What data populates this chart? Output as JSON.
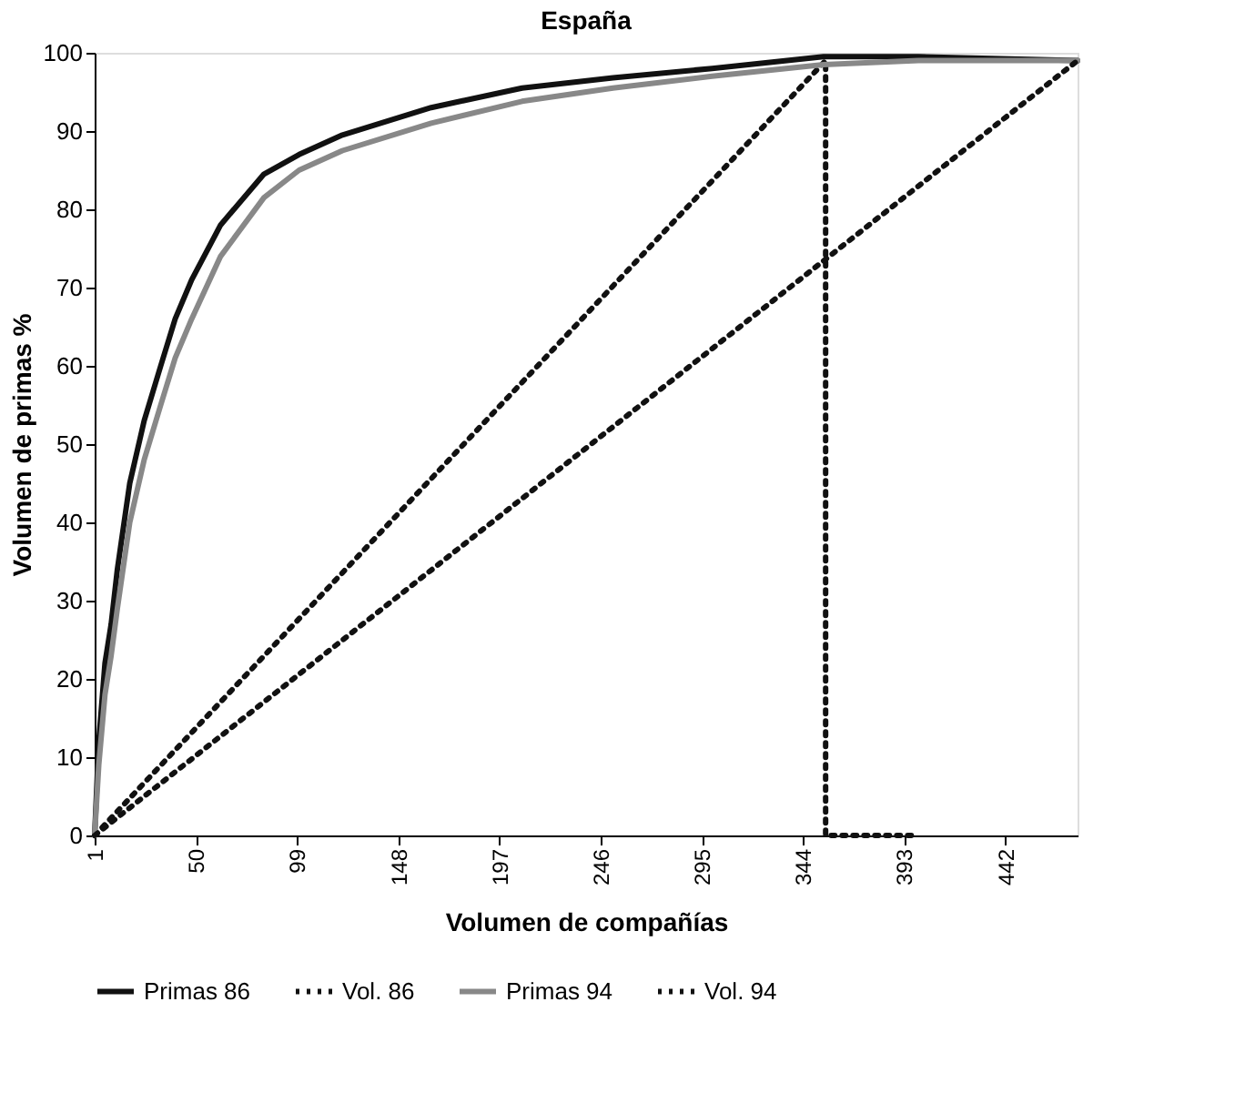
{
  "chart_data": {
    "type": "line",
    "title": "España",
    "xlabel": "Volumen de compañías",
    "ylabel": "Volumen de primas %",
    "xlim": [
      1,
      477
    ],
    "xticks": [
      1,
      50,
      99,
      148,
      197,
      246,
      295,
      344,
      393,
      442
    ],
    "ylim": [
      0,
      100
    ],
    "yticks": [
      0,
      10,
      20,
      30,
      40,
      50,
      60,
      70,
      80,
      90,
      100
    ],
    "grid": false,
    "legend": "bottom",
    "marker": "none",
    "series": [
      {
        "name": "Primas 86",
        "color": "#111111",
        "line_style": "solid",
        "x": [
          1,
          3,
          6,
          9,
          12,
          18,
          25,
          33,
          40,
          48,
          62,
          83,
          100,
          121,
          164,
          208,
          252,
          300,
          354,
          400,
          477
        ],
        "values": [
          0,
          12,
          22,
          27,
          34,
          45,
          53,
          60,
          66,
          71,
          78,
          84.5,
          87,
          89.5,
          93,
          95.5,
          96.8,
          98,
          99.5,
          99.5,
          99
        ]
      },
      {
        "name": "Vol. 86",
        "color": "#111111",
        "line_style": "dotted",
        "x": [
          1,
          355,
          355,
          400
        ],
        "values": [
          0,
          99,
          0,
          0
        ]
      },
      {
        "name": "Primas 94",
        "color": "#888888",
        "line_style": "solid",
        "x": [
          1,
          3,
          6,
          9,
          12,
          18,
          25,
          33,
          40,
          48,
          62,
          83,
          100,
          121,
          164,
          208,
          252,
          300,
          354,
          400,
          477
        ],
        "values": [
          0,
          9,
          18,
          23,
          29,
          40,
          48,
          55,
          61,
          66,
          74,
          81.5,
          85,
          87.5,
          91,
          93.8,
          95.5,
          97,
          98.5,
          99,
          99
        ]
      },
      {
        "name": "Vol. 94",
        "color": "#111111",
        "line_style": "dotted",
        "x": [
          1,
          477
        ],
        "values": [
          0,
          99
        ]
      }
    ]
  }
}
